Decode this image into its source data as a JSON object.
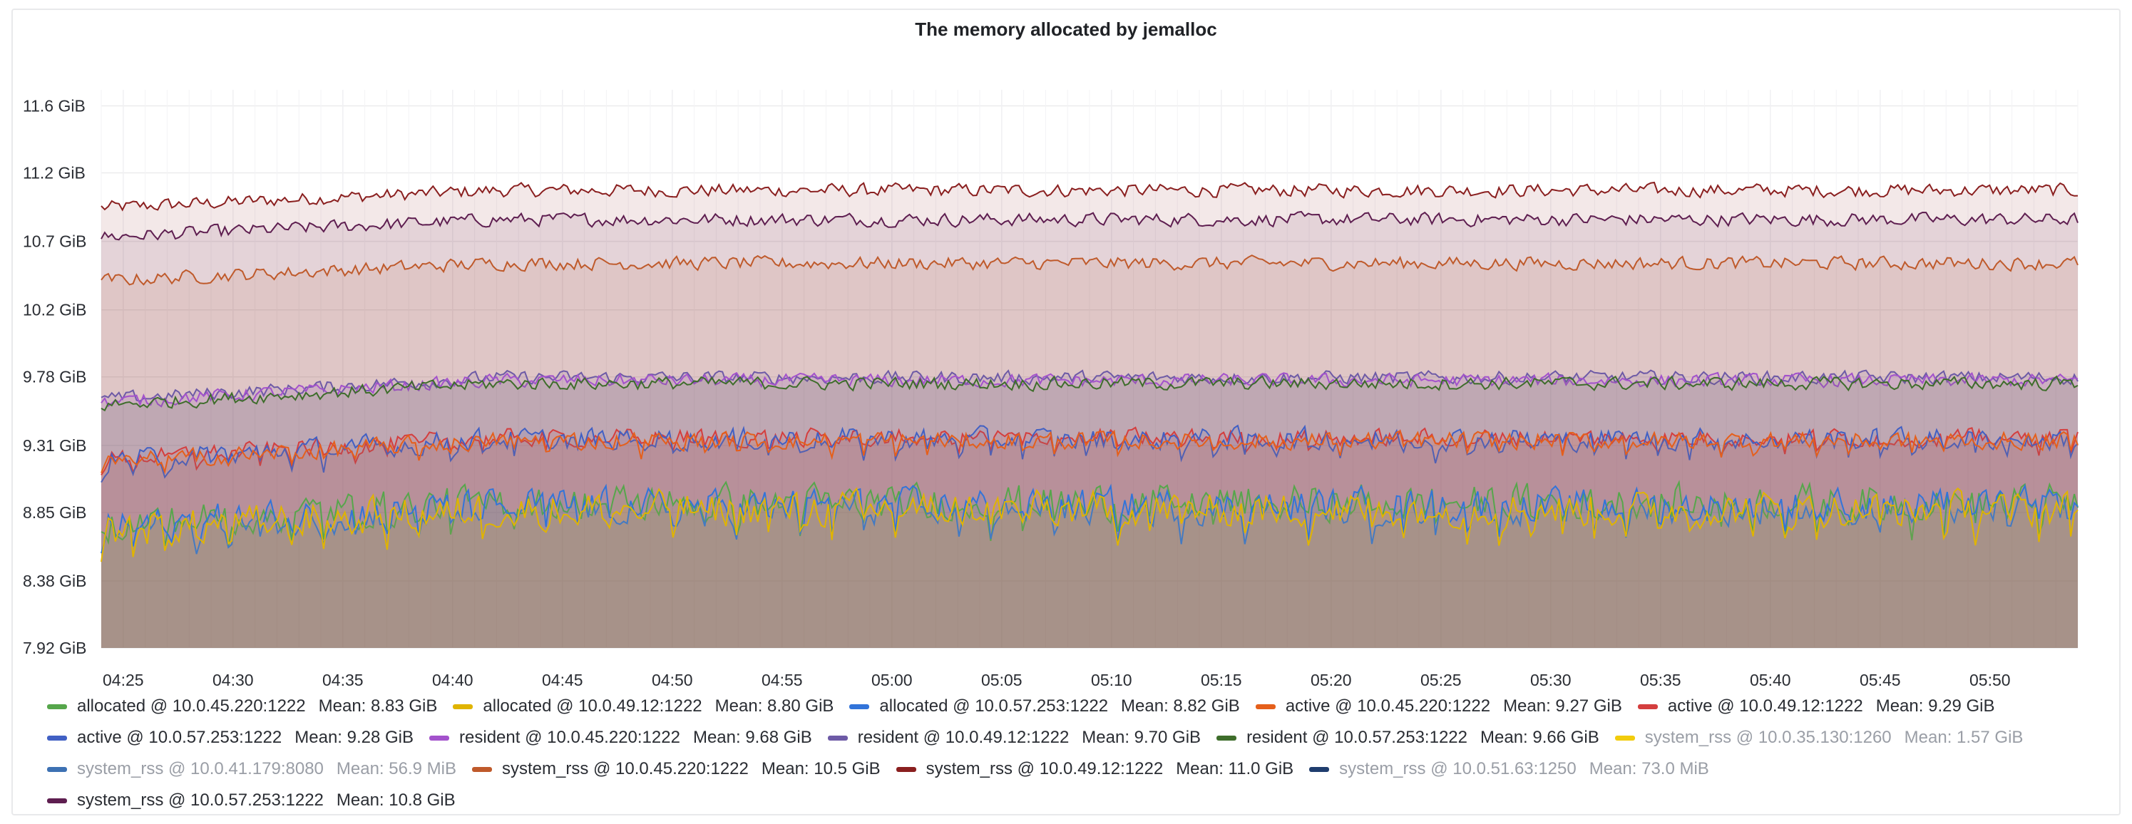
{
  "panel": {
    "title": "The memory allocated by jemalloc"
  },
  "chart_data": {
    "type": "area",
    "title": "The memory allocated by jemalloc",
    "x_ticks": [
      "04:25",
      "04:30",
      "04:35",
      "04:40",
      "04:45",
      "04:50",
      "04:55",
      "05:00",
      "05:05",
      "05:10",
      "05:15",
      "05:20",
      "05:25",
      "05:30",
      "05:35",
      "05:40",
      "05:45",
      "05:50"
    ],
    "y_ticks": [
      "7.92 GiB",
      "8.38 GiB",
      "8.85 GiB",
      "9.31 GiB",
      "9.78 GiB",
      "10.2 GiB",
      "10.7 GiB",
      "11.2 GiB",
      "11.6 GiB"
    ],
    "x_range_minutes": [
      "04:24",
      "05:54"
    ],
    "y_range_gib": [
      7.92,
      11.75
    ],
    "grid": true,
    "legend_placement": "bottom",
    "series": [
      {
        "name": "allocated @ 10.0.45.220:1222",
        "mean": "Mean: 8.83 GiB",
        "color": "#56a64b",
        "visible": true,
        "base": 8.85,
        "trend": 0.15,
        "noise": 0.16
      },
      {
        "name": "allocated @ 10.0.49.12:1222",
        "mean": "Mean: 8.80 GiB",
        "color": "#e0b400",
        "visible": true,
        "base": 8.8,
        "trend": 0.15,
        "noise": 0.16
      },
      {
        "name": "allocated @ 10.0.57.253:1222",
        "mean": "Mean: 8.82 GiB",
        "color": "#3274d9",
        "visible": true,
        "base": 8.82,
        "trend": 0.15,
        "noise": 0.16
      },
      {
        "name": "active @ 10.0.45.220:1222",
        "mean": "Mean: 9.27 GiB",
        "color": "#e55f1b",
        "visible": true,
        "base": 9.27,
        "trend": 0.15,
        "noise": 0.08
      },
      {
        "name": "active @ 10.0.49.12:1222",
        "mean": "Mean: 9.29 GiB",
        "color": "#d43e3e",
        "visible": true,
        "base": 9.29,
        "trend": 0.15,
        "noise": 0.08
      },
      {
        "name": "active @ 10.0.57.253:1222",
        "mean": "Mean: 9.28 GiB",
        "color": "#4160c4",
        "visible": true,
        "base": 9.28,
        "trend": 0.15,
        "noise": 0.1
      },
      {
        "name": "resident @ 10.0.45.220:1222",
        "mean": "Mean: 9.68 GiB",
        "color": "#a352cc",
        "visible": true,
        "base": 9.68,
        "trend": 0.15,
        "noise": 0.06
      },
      {
        "name": "resident @ 10.0.49.12:1222",
        "mean": "Mean: 9.70 GiB",
        "color": "#6d5aa6",
        "visible": true,
        "base": 9.7,
        "trend": 0.15,
        "noise": 0.06
      },
      {
        "name": "resident @ 10.0.57.253:1222",
        "mean": "Mean: 9.66 GiB",
        "color": "#3e6d2b",
        "visible": true,
        "base": 9.66,
        "trend": 0.15,
        "noise": 0.06
      },
      {
        "name": "system_rss @ 10.0.35.130:1260",
        "mean": "Mean: 1.57 GiB",
        "color": "#f2cc0c",
        "visible": false
      },
      {
        "name": "system_rss @ 10.0.41.179:8080",
        "mean": "Mean: 56.9 MiB",
        "color": "#3d71b3",
        "visible": false
      },
      {
        "name": "system_rss @ 10.0.45.220:1222",
        "mean": "Mean: 10.5 GiB",
        "color": "#bf5a2b",
        "visible": true,
        "base": 10.5,
        "trend": 0.12,
        "noise": 0.06
      },
      {
        "name": "system_rss @ 10.0.49.12:1222",
        "mean": "Mean: 11.0 GiB",
        "color": "#8a1f1f",
        "visible": true,
        "base": 11.0,
        "trend": 0.12,
        "noise": 0.06
      },
      {
        "name": "system_rss @ 10.0.51.63:1250",
        "mean": "Mean: 73.0 MiB",
        "color": "#1f3d6e",
        "visible": false
      },
      {
        "name": "system_rss @ 10.0.57.253:1222",
        "mean": "Mean: 10.8 GiB",
        "color": "#5e1e50",
        "visible": true,
        "base": 10.8,
        "trend": 0.12,
        "noise": 0.06
      }
    ]
  }
}
